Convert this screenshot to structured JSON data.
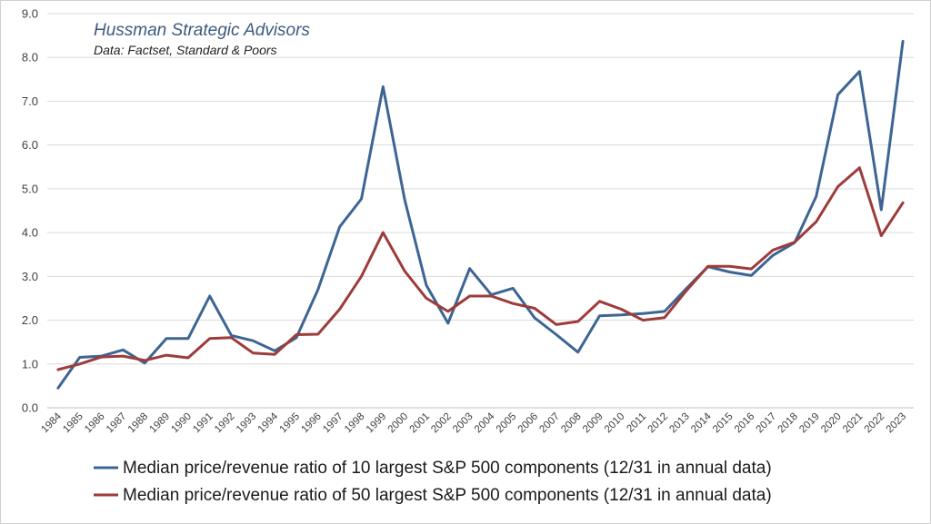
{
  "chart_data": {
    "type": "line",
    "title": "Hussman Strategic Advisors",
    "subtitle": "Data: Factset, Standard & Poors",
    "xlabel": "",
    "ylabel": "",
    "ylim": [
      0,
      9
    ],
    "yticks": [
      "0.0",
      "1.0",
      "2.0",
      "3.0",
      "4.0",
      "5.0",
      "6.0",
      "7.0",
      "8.0",
      "9.0"
    ],
    "grid": true,
    "legend_position": "bottom",
    "categories": [
      "1984",
      "1985",
      "1986",
      "1987",
      "1988",
      "1989",
      "1990",
      "1991",
      "1992",
      "1993",
      "1994",
      "1995",
      "1996",
      "1997",
      "1998",
      "1999",
      "2000",
      "2001",
      "2002",
      "2003",
      "2004",
      "2005",
      "2006",
      "2007",
      "2008",
      "2009",
      "2010",
      "2011",
      "2012",
      "2013",
      "2014",
      "2015",
      "2016",
      "2017",
      "2018",
      "2019",
      "2020",
      "2021",
      "2022",
      "2023"
    ],
    "series": [
      {
        "name": "Median price/revenue ratio of 10 largest S&P 500 components (12/31 in annual data)",
        "color": "#3d6594",
        "values": [
          0.45,
          1.15,
          1.18,
          1.32,
          1.02,
          1.58,
          1.58,
          2.55,
          1.65,
          1.53,
          1.3,
          1.6,
          2.7,
          4.13,
          4.77,
          7.33,
          4.75,
          2.8,
          1.93,
          3.18,
          2.58,
          2.73,
          2.05,
          1.67,
          1.27,
          2.1,
          2.12,
          2.15,
          2.2,
          2.72,
          3.22,
          3.1,
          3.02,
          3.48,
          3.77,
          4.83,
          7.15,
          7.68,
          4.52,
          8.37
        ]
      },
      {
        "name": "Median price/revenue ratio of 50 largest S&P 500 components (12/31 in annual data)",
        "color": "#9e3b3b",
        "values": [
          0.87,
          1.0,
          1.16,
          1.18,
          1.08,
          1.2,
          1.14,
          1.58,
          1.6,
          1.25,
          1.22,
          1.67,
          1.68,
          2.25,
          3.0,
          4.0,
          3.12,
          2.5,
          2.2,
          2.55,
          2.55,
          2.38,
          2.27,
          1.9,
          1.97,
          2.43,
          2.25,
          2.0,
          2.06,
          2.67,
          3.23,
          3.23,
          3.17,
          3.6,
          3.78,
          4.25,
          5.05,
          5.48,
          3.93,
          4.68
        ]
      }
    ]
  }
}
